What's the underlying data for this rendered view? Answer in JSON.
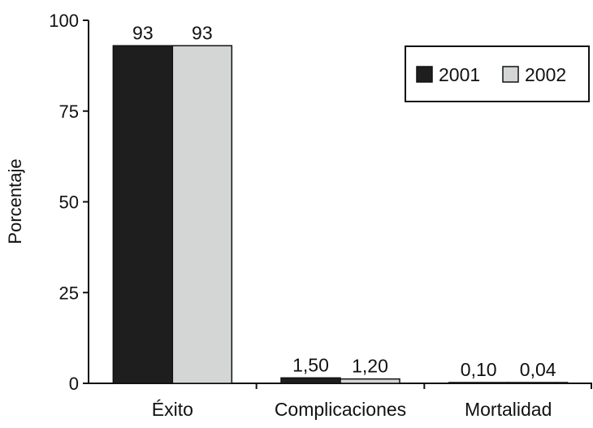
{
  "chart_data": {
    "type": "bar",
    "categories": [
      "Éxito",
      "Complicaciones",
      "Mortalidad"
    ],
    "series": [
      {
        "name": "2001",
        "values": [
          93,
          1.5,
          0.1
        ],
        "labels": [
          "93",
          "1,50",
          "0,10"
        ],
        "color": "#1e1e1e"
      },
      {
        "name": "2002",
        "values": [
          93,
          1.2,
          0.04
        ],
        "labels": [
          "93",
          "1,20",
          "0,04"
        ],
        "color": "#d4d6d5"
      }
    ],
    "ylabel": "Porcentaje",
    "xlabel": "",
    "ylim": [
      0,
      100
    ],
    "yticks": [
      0,
      25,
      50,
      75,
      100
    ],
    "ytick_labels": [
      "0",
      "25",
      "50",
      "75",
      "100"
    ],
    "grid": false,
    "legend_position": "top-right"
  }
}
